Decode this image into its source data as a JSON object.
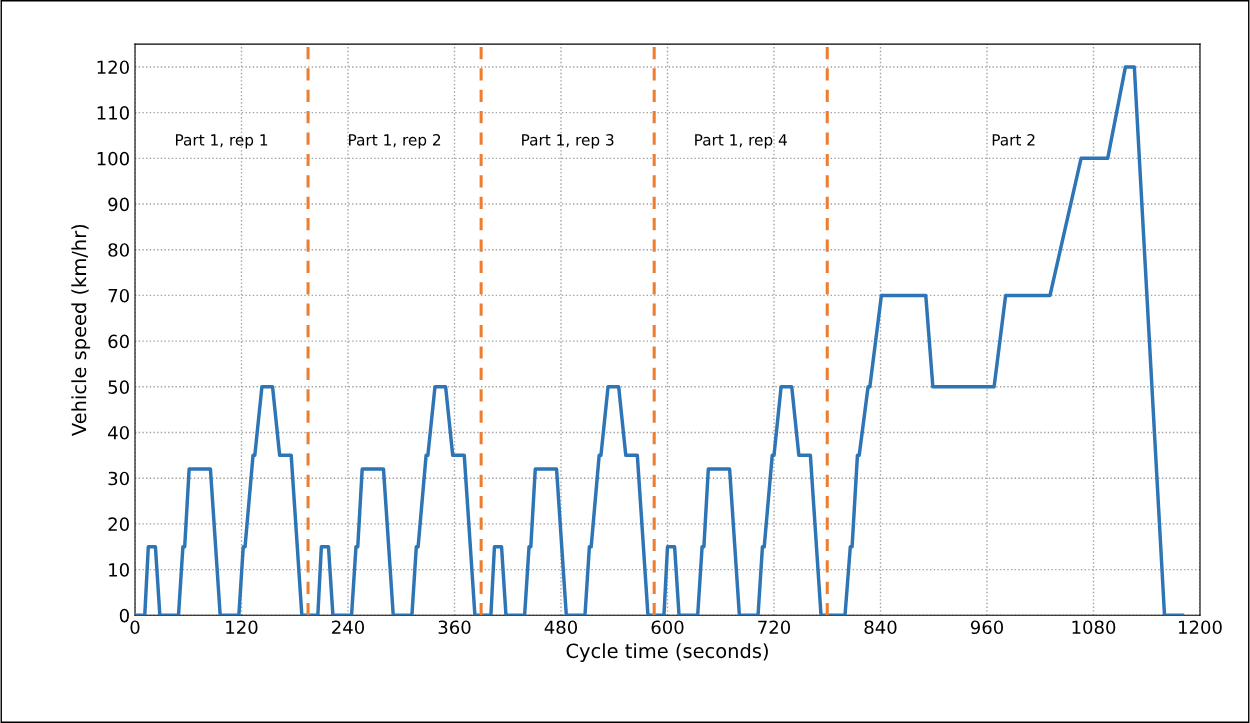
{
  "chart_data": {
    "type": "line",
    "xlabel": "Cycle time (seconds)",
    "ylabel": "Vehicle speed (km/hr)",
    "x": [
      0,
      11,
      15,
      23,
      28,
      49,
      54,
      56,
      61,
      85,
      96,
      117,
      122,
      124,
      133,
      135,
      143,
      155,
      163,
      176,
      188,
      195,
      206,
      210,
      218,
      223,
      244,
      249,
      251,
      256,
      280,
      291,
      312,
      317,
      319,
      328,
      330,
      338,
      350,
      358,
      371,
      383,
      390,
      401,
      405,
      413,
      418,
      439,
      444,
      446,
      451,
      475,
      486,
      507,
      512,
      514,
      523,
      525,
      533,
      545,
      553,
      566,
      578,
      585,
      596,
      600,
      608,
      613,
      634,
      639,
      641,
      646,
      670,
      681,
      702,
      707,
      709,
      718,
      720,
      728,
      740,
      748,
      761,
      773,
      780,
      800,
      806,
      808,
      814,
      816,
      826,
      828,
      841,
      891,
      899,
      968,
      981,
      1031,
      1066,
      1096,
      1116,
      1126,
      1160,
      1180
    ],
    "series": [
      {
        "color": "#2e75b6",
        "values": [
          0,
          0,
          15,
          15,
          0,
          0,
          15,
          15,
          32,
          32,
          0,
          0,
          15,
          15,
          35,
          35,
          50,
          50,
          35,
          35,
          0,
          0,
          0,
          15,
          15,
          0,
          0,
          15,
          15,
          32,
          32,
          0,
          0,
          15,
          15,
          35,
          35,
          50,
          50,
          35,
          35,
          0,
          0,
          0,
          15,
          15,
          0,
          0,
          15,
          15,
          32,
          32,
          0,
          0,
          15,
          15,
          35,
          35,
          50,
          50,
          35,
          35,
          0,
          0,
          0,
          15,
          15,
          0,
          0,
          15,
          15,
          32,
          32,
          0,
          0,
          15,
          15,
          35,
          35,
          50,
          50,
          35,
          35,
          0,
          0,
          0,
          15,
          15,
          35,
          35,
          50,
          50,
          70,
          70,
          50,
          50,
          70,
          70,
          100,
          100,
          120,
          120,
          0,
          0
        ]
      }
    ],
    "xlim": [
      0,
      1200
    ],
    "xticks": [
      0,
      120,
      240,
      360,
      480,
      600,
      720,
      840,
      960,
      1080,
      1200
    ],
    "ylim": [
      0,
      125
    ],
    "yticks": [
      0,
      10,
      20,
      30,
      40,
      50,
      60,
      70,
      80,
      90,
      100,
      110,
      120
    ],
    "grid": true,
    "marker": "none",
    "line_style": "solid",
    "legend": false,
    "ref_lines": [
      {
        "axis": "x",
        "value": 195,
        "color": "#ed7d31",
        "line_style": "dashed"
      },
      {
        "axis": "x",
        "value": 390,
        "color": "#ed7d31",
        "line_style": "dashed"
      },
      {
        "axis": "x",
        "value": 585,
        "color": "#ed7d31",
        "line_style": "dashed"
      },
      {
        "axis": "x",
        "value": 780,
        "color": "#ed7d31",
        "line_style": "dashed"
      }
    ],
    "annotations": [
      "Part 1, rep 1",
      "Part 1, rep 2",
      "Part 1, rep 3",
      "Part 1, rep 4",
      "Part 2"
    ]
  }
}
